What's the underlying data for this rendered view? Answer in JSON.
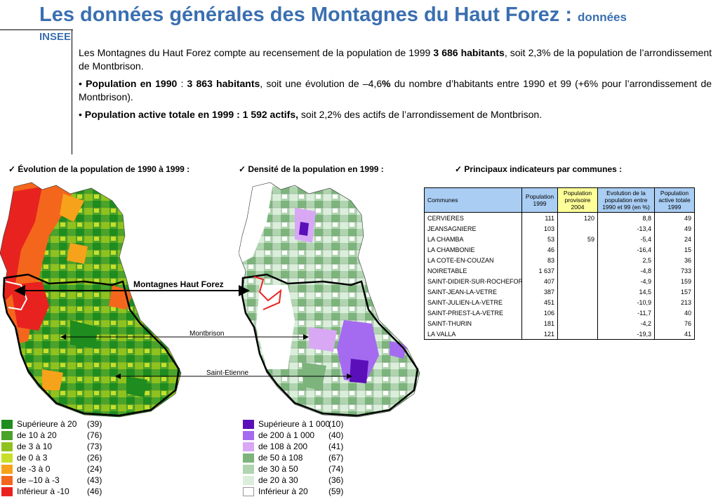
{
  "header": {
    "title_main": "Les données générales des Montagnes du Haut Forez :",
    "title_small": "données",
    "title_line2": "INSEE"
  },
  "intro": {
    "p1_a": "Les Montagnes du Haut Forez compte au recensement de la population de 1999 ",
    "p1_b": "3 686 habitants",
    "p1_c": ", soit 2,3% de la population de l’arrondissement de Montbrison.",
    "p2_bullet": "• ",
    "p2_a": "Population en 1990",
    "p2_b": " : ",
    "p2_c": "3 863 habitants",
    "p2_d": ", soit une évolution de –4,6",
    "p2_e": "%",
    "p2_f": " du nombre d’habitants entre 1990 et 99 (+6% pour l’arrondissement de Montbrison).",
    "p3_bullet": "• ",
    "p3_a": "Population active totale en 1999 : 1 592 actifs,",
    "p3_b": " soit 2,2% des actifs de l’arrondissement de Montbrison."
  },
  "sections": {
    "evolution": "✓ Évolution de la population de 1990 à 1999 :",
    "densite": "✓ Densité de la population en 1999 :",
    "indicateurs": "✓ Principaux indicateurs par communes :"
  },
  "map_labels": {
    "haut_forez": "Montagnes Haut Forez",
    "montbrison": "Montbrison",
    "saint_etienne": "Saint-Etienne"
  },
  "table": {
    "headers": [
      "Communes",
      "Population 1999",
      "Population provisoire 2004",
      "Evolution de la population entre 1990 et 99 (en %)",
      "Population active totale 1999"
    ],
    "rows": [
      [
        "CERVIERES",
        "111",
        "120",
        "8,8",
        "49"
      ],
      [
        "JEANSAGNIERE",
        "103",
        "",
        "-13,4",
        "49"
      ],
      [
        "LA CHAMBA",
        "53",
        "59",
        "-5,4",
        "24"
      ],
      [
        "LA CHAMBONIE",
        "46",
        "",
        "-16,4",
        "15"
      ],
      [
        "LA COTE-EN-COUZAN",
        "83",
        "",
        "2,5",
        "36"
      ],
      [
        "NOIRETABLE",
        "1 637",
        "",
        "-4,8",
        "733"
      ],
      [
        "SAINT-DIDIER-SUR-ROCHEFORT",
        "407",
        "",
        "-4,9",
        "159"
      ],
      [
        "SAINT-JEAN-LA-VETRE",
        "387",
        "",
        "14,5",
        "157"
      ],
      [
        "SAINT-JULIEN-LA-VETRE",
        "451",
        "",
        "-10,9",
        "213"
      ],
      [
        "SAINT-PRIEST-LA-VETRE",
        "106",
        "",
        "-11,7",
        "40"
      ],
      [
        "SAINT-THURIN",
        "181",
        "",
        "-4,2",
        "76"
      ],
      [
        "LA VALLA",
        "121",
        "",
        "-19,3",
        "41"
      ]
    ]
  },
  "legend_evolution": [
    {
      "label": "Supérieure à 20",
      "count": "(39)",
      "color": "#1e8c1e"
    },
    {
      "label": "de 10 à 20",
      "count": "(76)",
      "color": "#4aa32a"
    },
    {
      "label": "de 3 à 10",
      "count": "(73)",
      "color": "#8fc21f"
    },
    {
      "label": "de 0 à 3",
      "count": "(26)",
      "color": "#c8df2a"
    },
    {
      "label": "de -3 à 0",
      "count": "(24)",
      "color": "#f6a21a"
    },
    {
      "label": "de –10 à -3",
      "count": "(43)",
      "color": "#f4661c"
    },
    {
      "label": "Inférieur à -10",
      "count": "(46)",
      "color": "#e8231f"
    }
  ],
  "legend_densite": [
    {
      "label": "Supérieure à 1 000",
      "count": "(10)",
      "color": "#5a0fb8"
    },
    {
      "label": "de 200 à 1 000",
      "count": "(40)",
      "color": "#a46af0"
    },
    {
      "label": "de 108 à 200",
      "count": "(41)",
      "color": "#d8a8f5"
    },
    {
      "label": "de 50 à 108",
      "count": "(67)",
      "color": "#7cb47c"
    },
    {
      "label": "de 30 à 50",
      "count": "(74)",
      "color": "#b0d4b0"
    },
    {
      "label": "de 20 à 30",
      "count": "(36)",
      "color": "#dbeedb"
    },
    {
      "label": "Inférieur à 20",
      "count": "(59)",
      "color": "#ffffff"
    }
  ]
}
